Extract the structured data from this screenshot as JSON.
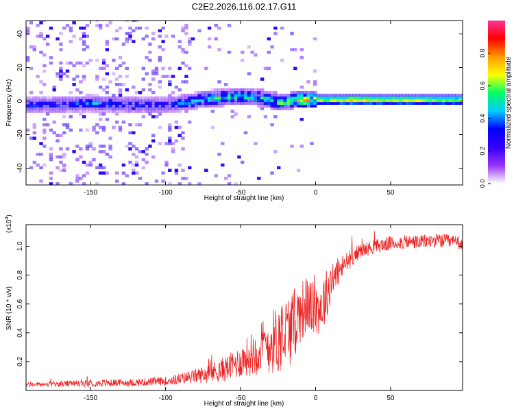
{
  "title": "C2E2.2026.116.02.17.G11",
  "chart_data": [
    {
      "type": "heatmap",
      "name": "spectrogram",
      "title": "C2E2.2026.116.02.17.G11",
      "xlabel": "Height of straight line (km)",
      "ylabel": "Frequency (Hz)",
      "xlim": [
        -193,
        98
      ],
      "ylim": [
        -50,
        48
      ],
      "xticks": [
        -150,
        -100,
        -50,
        0,
        50
      ],
      "xtick_labels": [
        "-150",
        "-100",
        "-50",
        "0",
        "50"
      ],
      "yticks": [
        -40,
        -20,
        0,
        20,
        40
      ],
      "ytick_labels": [
        "-40",
        "-20",
        "0",
        "20",
        "40"
      ],
      "colorbar": {
        "label": "Normalized spectral amplitude",
        "range": [
          0,
          1
        ],
        "ticks": [
          0.0,
          0.2,
          0.4,
          0.6,
          0.8
        ],
        "tick_labels": [
          "0.0",
          "0.2",
          "0.4",
          "0.6",
          "0.8"
        ],
        "colors": [
          "#ffffff",
          "#9933ff",
          "#3300ff",
          "#0000ff",
          "#00ccff",
          "#00ff66",
          "#ffff00",
          "#ff9900",
          "#ff0000",
          "#ff3399"
        ]
      },
      "ridge": {
        "x": [
          -175,
          -150,
          -125,
          -100,
          -85,
          -70,
          -50,
          -35,
          -25,
          -15,
          -10,
          0,
          25,
          50,
          98
        ],
        "frequency": [
          -3,
          -2,
          -3,
          -3,
          -1,
          1,
          2,
          1,
          -2,
          0,
          0,
          0,
          0,
          0,
          0
        ],
        "amplitude": [
          0.35,
          0.4,
          0.35,
          0.3,
          0.45,
          0.5,
          0.55,
          0.5,
          0.55,
          0.7,
          0.75,
          0.7,
          0.8,
          0.75,
          0.7
        ]
      }
    },
    {
      "type": "line",
      "name": "snr",
      "xlabel": "Height of straight line (km)",
      "ylabel": "SNR (10 * v/v)",
      "multiplier": "(x10",
      "multiplier_exp": "4",
      "multiplier_close": ")",
      "xlim": [
        -193,
        98
      ],
      "ylim": [
        0,
        1.15
      ],
      "xticks": [
        -150,
        -100,
        -50,
        0,
        50
      ],
      "xtick_labels": [
        "-150",
        "-100",
        "-50",
        "0",
        "50"
      ],
      "yticks": [
        0.2,
        0.4,
        0.6,
        0.8,
        1.0
      ],
      "ytick_labels": [
        "0.2",
        "0.4",
        "0.6",
        "0.8",
        "1.0"
      ],
      "color": "#ee2222",
      "x": [
        -193,
        -170,
        -150,
        -120,
        -100,
        -90,
        -80,
        -70,
        -60,
        -50,
        -45,
        -40,
        -35,
        -30,
        -25,
        -20,
        -15,
        -10,
        -5,
        0,
        5,
        10,
        15,
        20,
        25,
        30,
        40,
        50,
        60,
        70,
        80,
        90,
        98
      ],
      "y": [
        0.04,
        0.045,
        0.05,
        0.055,
        0.065,
        0.08,
        0.1,
        0.12,
        0.15,
        0.2,
        0.24,
        0.27,
        0.3,
        0.33,
        0.36,
        0.4,
        0.45,
        0.55,
        0.6,
        0.55,
        0.6,
        0.75,
        0.82,
        0.88,
        0.93,
        0.97,
        1.0,
        1.02,
        1.03,
        1.03,
        1.04,
        1.03,
        1.02
      ],
      "noise": [
        0.015,
        0.02,
        0.025,
        0.025,
        0.03,
        0.04,
        0.05,
        0.07,
        0.09,
        0.11,
        0.14,
        0.17,
        0.2,
        0.22,
        0.25,
        0.27,
        0.25,
        0.22,
        0.2,
        0.18,
        0.2,
        0.15,
        0.1,
        0.08,
        0.06,
        0.05,
        0.05,
        0.05,
        0.05,
        0.05,
        0.05,
        0.05,
        0.05
      ]
    }
  ]
}
